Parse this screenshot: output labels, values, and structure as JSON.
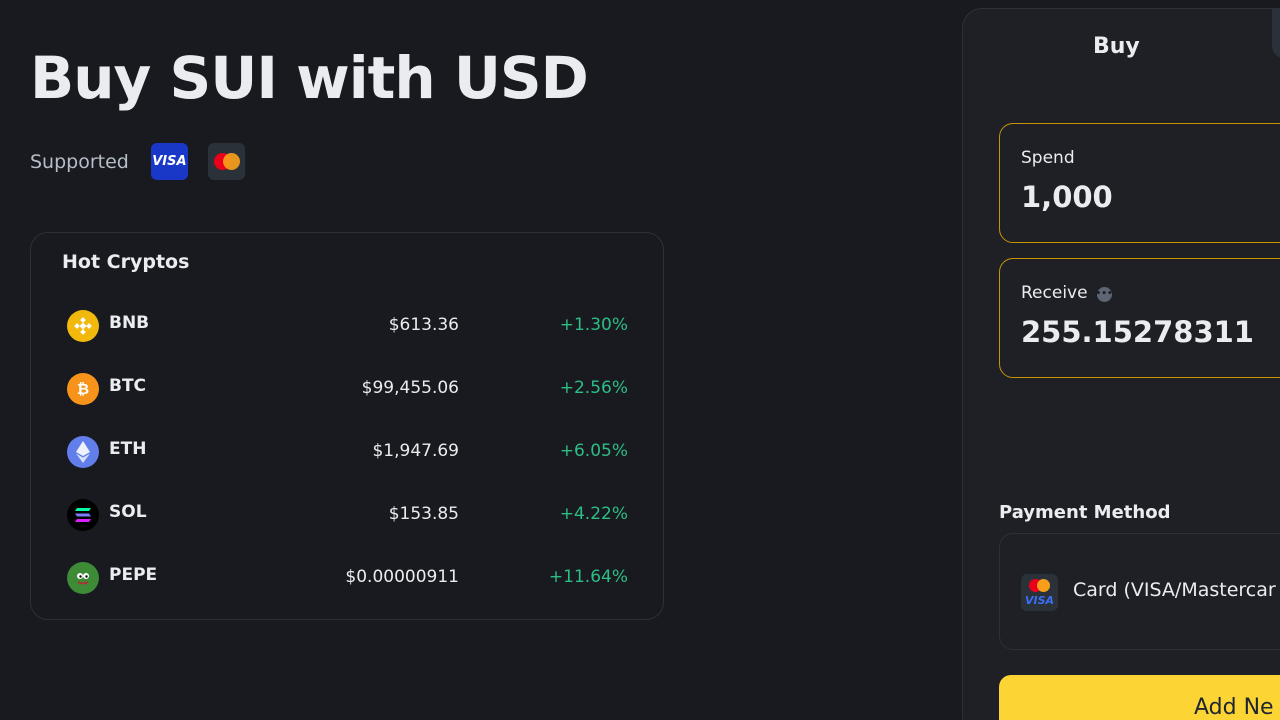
{
  "header": {
    "title": "Buy SUI with USD",
    "supported_label": "Supported",
    "payment_badges": [
      {
        "name": "visa",
        "label": "VISA",
        "color": "#1a38c8"
      },
      {
        "name": "mastercard",
        "label": "",
        "color": "#2b3139"
      }
    ]
  },
  "hot_cryptos": {
    "title": "Hot Cryptos",
    "rows": [
      {
        "symbol": "BNB",
        "price": "$613.36",
        "change": "+1.30%",
        "icon": "bnb-icon",
        "color": "#f0b90b"
      },
      {
        "symbol": "BTC",
        "price": "$99,455.06",
        "change": "+2.56%",
        "icon": "btc-icon",
        "color": "#f7931a"
      },
      {
        "symbol": "ETH",
        "price": "$1,947.69",
        "change": "+6.05%",
        "icon": "eth-icon",
        "color": "#627eea"
      },
      {
        "symbol": "SOL",
        "price": "$153.85",
        "change": "+4.22%",
        "icon": "sol-icon",
        "color": "#000000"
      },
      {
        "symbol": "PEPE",
        "price": "$0.00000911",
        "change": "+11.64%",
        "icon": "pepe-icon",
        "color": "#3d8b37"
      }
    ]
  },
  "trade_panel": {
    "active_tab": "Buy",
    "spend": {
      "label": "Spend",
      "value": "1,000"
    },
    "receive": {
      "label": "Receive",
      "value": "255.15278311"
    },
    "payment_method": {
      "label": "Payment Method",
      "selected": "Card (VISA/Mastercar",
      "icon_label": "VISA"
    },
    "add_button_label": "Add Ne"
  },
  "colors": {
    "background": "#181a20",
    "accent_yellow": "#fcd535",
    "positive_green": "#2ebd85",
    "field_border": "#c99400"
  }
}
